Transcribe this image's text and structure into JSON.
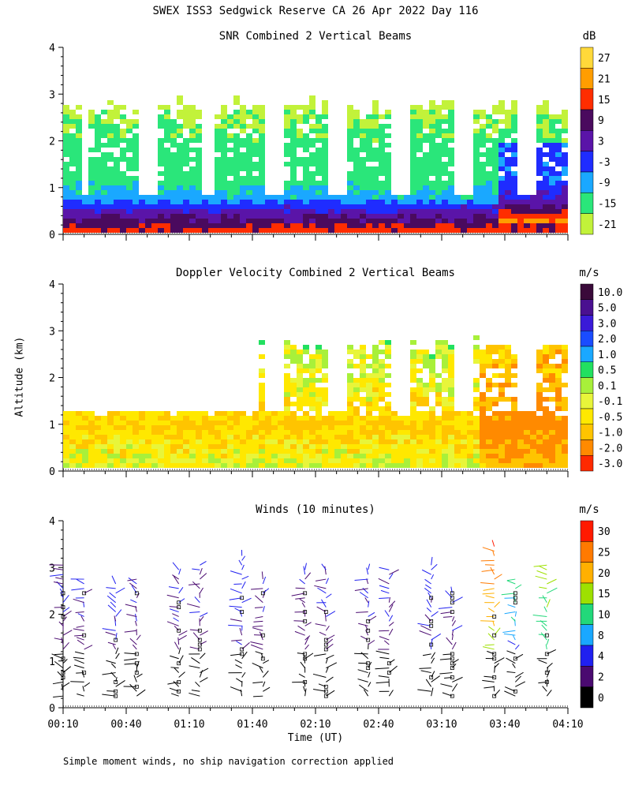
{
  "page_title": "SWEX ISS3 Sedgwick Reserve CA  26 Apr 2022 Day 116",
  "shared": {
    "ylabel": "Altitude (km)",
    "xlabel": "Time (UT)",
    "x_ticks": [
      "00:10",
      "00:40",
      "01:10",
      "01:40",
      "02:10",
      "02:40",
      "03:10",
      "03:40",
      "04:10"
    ],
    "y_ticks": [
      "0",
      "1",
      "2",
      "3",
      "4"
    ],
    "footnote": "Simple moment winds, no ship navigation correction applied"
  },
  "chart_data": [
    {
      "type": "heatmap",
      "title": "SNR Combined 2 Vertical Beams",
      "unit": "dB",
      "x_range": [
        "00:10",
        "04:10"
      ],
      "ylim": [
        0,
        4
      ],
      "colorbar_labels": [
        "27",
        "21",
        "15",
        "9",
        "3",
        "-3",
        "-9",
        "-15",
        "-21"
      ],
      "colorbar_colors": [
        "#ffd93a",
        "#ff9d00",
        "#ff2d00",
        "#4a0a5e",
        "#5a14a8",
        "#1f2cff",
        "#1aa8ff",
        "#2ae67a",
        "#c2f23a"
      ],
      "profile_dB_by_altitude": [
        {
          "altitude_km": 0.1,
          "snr_db": 15
        },
        {
          "altitude_km": 0.3,
          "snr_db": 9
        },
        {
          "altitude_km": 0.5,
          "snr_db": 3
        },
        {
          "altitude_km": 0.8,
          "snr_db": -9
        },
        {
          "altitude_km": 1.2,
          "snr_db": -15
        },
        {
          "altitude_km": 2.0,
          "snr_db": -15
        },
        {
          "altitude_km": 2.8,
          "snr_db": -21
        }
      ]
    },
    {
      "type": "heatmap",
      "title": "Doppler Velocity Combined 2 Vertical Beams",
      "unit": "m/s",
      "x_range": [
        "00:10",
        "04:10"
      ],
      "ylim": [
        0,
        4
      ],
      "colorbar_labels": [
        "10.0",
        "5.0",
        "3.0",
        "2.0",
        "1.0",
        "0.5",
        "0.1",
        "-0.1",
        "-0.5",
        "-1.0",
        "-2.0",
        "-3.0"
      ],
      "colorbar_colors": [
        "#3a0a3a",
        "#4a1090",
        "#3a1ad8",
        "#1a4cff",
        "#1aa8ff",
        "#22e060",
        "#a8f03a",
        "#e8f53a",
        "#ffe800",
        "#ffc400",
        "#ff8a00",
        "#ff2a00"
      ],
      "profile_velocity_by_altitude": [
        {
          "altitude_km": 0.2,
          "velocity_ms": 0.0
        },
        {
          "altitude_km": 0.6,
          "velocity_ms": -0.3
        },
        {
          "altitude_km": 1.0,
          "velocity_ms": -0.6
        },
        {
          "altitude_km": 2.0,
          "velocity_ms": 0.0
        },
        {
          "altitude_km": 2.7,
          "velocity_ms": 0.2
        }
      ]
    },
    {
      "type": "scatter",
      "title": "Winds (10 minutes)",
      "unit": "m/s",
      "x_range": [
        "00:10",
        "04:10"
      ],
      "ylim": [
        0,
        4
      ],
      "colorbar_labels": [
        "30",
        "25",
        "20",
        "15",
        "10",
        "8",
        "4",
        "2",
        "0"
      ],
      "colorbar_colors": [
        "#ff1a00",
        "#ff7a00",
        "#ffb000",
        "#9ee000",
        "#22d87a",
        "#1aa8ff",
        "#2020f0",
        "#4a0a70",
        "#000000"
      ],
      "profiles": [
        {
          "time": "00:10",
          "top_km": 3.1,
          "speed_ms": 3
        },
        {
          "time": "00:20",
          "top_km": 2.8,
          "speed_ms": 3
        },
        {
          "time": "00:35",
          "top_km": 2.7,
          "speed_ms": 4
        },
        {
          "time": "00:45",
          "top_km": 2.8,
          "speed_ms": 3
        },
        {
          "time": "01:05",
          "top_km": 3.0,
          "speed_ms": 3
        },
        {
          "time": "01:15",
          "top_km": 3.1,
          "speed_ms": 3
        },
        {
          "time": "01:35",
          "top_km": 3.3,
          "speed_ms": 4
        },
        {
          "time": "01:45",
          "top_km": 2.8,
          "speed_ms": 3
        },
        {
          "time": "02:05",
          "top_km": 3.0,
          "speed_ms": 3
        },
        {
          "time": "02:15",
          "top_km": 3.0,
          "speed_ms": 3
        },
        {
          "time": "02:35",
          "top_km": 3.0,
          "speed_ms": 3
        },
        {
          "time": "02:45",
          "top_km": 3.0,
          "speed_ms": 3
        },
        {
          "time": "03:05",
          "top_km": 3.1,
          "speed_ms": 4
        },
        {
          "time": "03:15",
          "top_km": 2.5,
          "speed_ms": 3
        },
        {
          "time": "03:35",
          "top_km": 3.5,
          "speed_ms": 20
        },
        {
          "time": "03:45",
          "top_km": 2.8,
          "speed_ms": 8
        },
        {
          "time": "04:00",
          "top_km": 3.1,
          "speed_ms": 12
        }
      ]
    }
  ]
}
